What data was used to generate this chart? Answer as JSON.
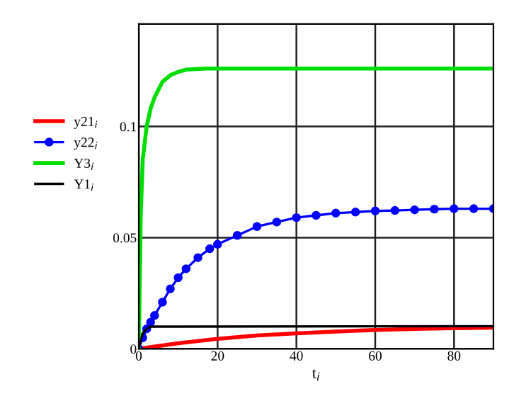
{
  "chart_data": {
    "type": "line",
    "xlabel": "t$_{i}$",
    "xlim": [
      0,
      90
    ],
    "ylim": [
      0,
      0.146
    ],
    "xticks": [
      0,
      20,
      40,
      60,
      80
    ],
    "yticks": [
      0,
      0.05,
      0.1
    ],
    "grid": true,
    "legend": "left",
    "series": [
      {
        "name": "y21$_{i}$",
        "color": "#ff0000",
        "x": [
          0,
          10,
          20,
          30,
          40,
          50,
          60,
          70,
          80,
          90
        ],
        "values": [
          0,
          0.0025,
          0.0045,
          0.006,
          0.007,
          0.0078,
          0.0085,
          0.009,
          0.0093,
          0.0095
        ]
      },
      {
        "name": "y22$_{i}$",
        "color": "#0000ff",
        "marker": "circle",
        "x": [
          0,
          1,
          2,
          3,
          4,
          6,
          8,
          10,
          12,
          15,
          18,
          20,
          25,
          30,
          35,
          40,
          45,
          50,
          55,
          60,
          65,
          70,
          75,
          80,
          85,
          90
        ],
        "values": [
          0,
          0.005,
          0.009,
          0.012,
          0.015,
          0.021,
          0.027,
          0.032,
          0.036,
          0.041,
          0.045,
          0.047,
          0.051,
          0.055,
          0.057,
          0.059,
          0.06,
          0.061,
          0.0615,
          0.062,
          0.0622,
          0.0625,
          0.0628,
          0.063,
          0.063,
          0.063
        ]
      },
      {
        "name": "Y3$_{i}$",
        "color": "#00dd00",
        "x": [
          0,
          0.5,
          1,
          2,
          3,
          4,
          6,
          8,
          10,
          12,
          17,
          90
        ],
        "values": [
          0,
          0.06,
          0.085,
          0.1,
          0.108,
          0.113,
          0.12,
          0.123,
          0.1245,
          0.1255,
          0.126,
          0.126
        ]
      },
      {
        "name": "Y1$_{i}$",
        "color": "#000000",
        "x": [
          0,
          1,
          2,
          3,
          90
        ],
        "values": [
          0,
          0.007,
          0.009,
          0.01,
          0.0102
        ]
      }
    ]
  }
}
